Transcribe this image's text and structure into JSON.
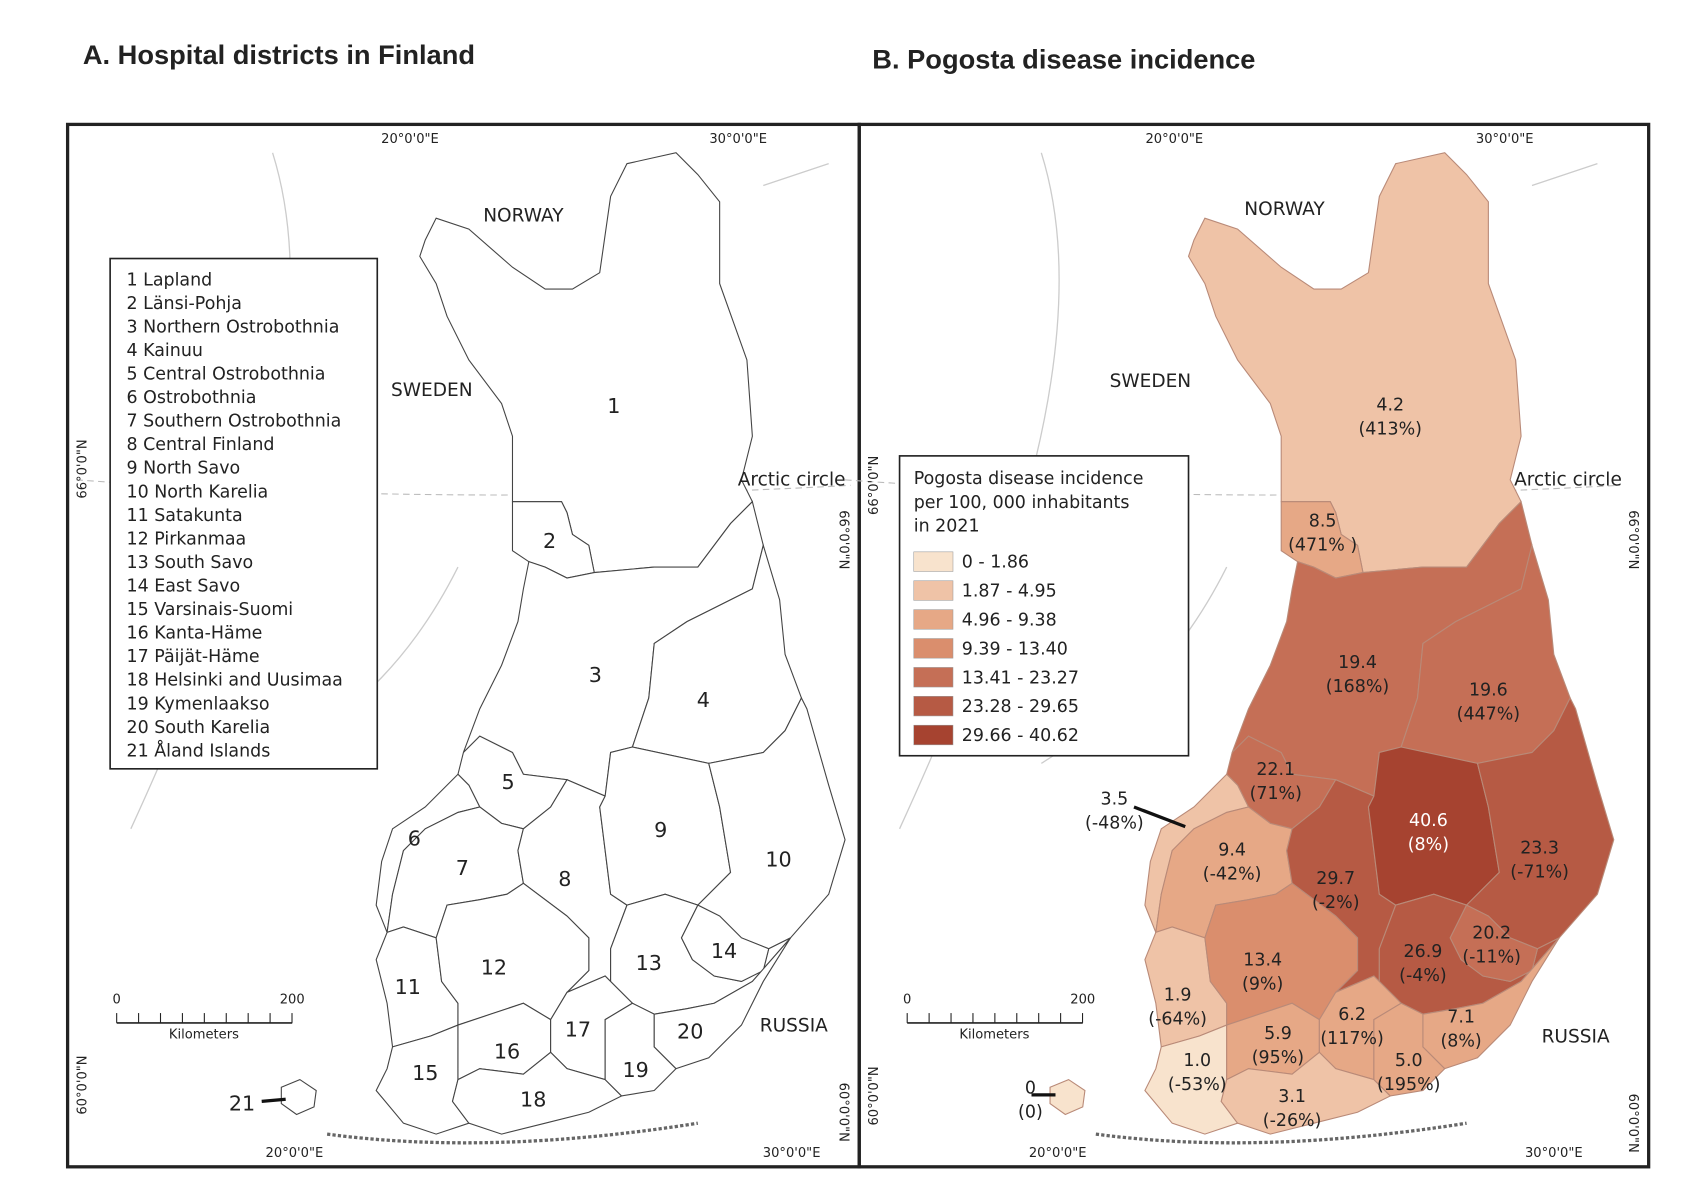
{
  "panel_a": {
    "title": "A. Hospital districts in Finland",
    "countries": {
      "norway": "NORWAY",
      "sweden": "SWEDEN",
      "russia": "RUSSIA"
    },
    "arctic_circle": "Arctic circle",
    "coords": {
      "lon_20": "20°0'0\"E",
      "lon_30": "30°0'0\"E",
      "lat_66": "66°0'0\"N",
      "lat_60": "60°0'0\"N"
    },
    "legend": [
      "1 Lapland",
      "2 Länsi-Pohja",
      "3 Northern Ostrobothnia",
      "4 Kainuu",
      "5 Central Ostrobothnia",
      "6 Ostrobothnia",
      "7 Southern Ostrobothnia",
      "8 Central Finland",
      "9 North Savo",
      "10 North Karelia",
      "11  Satakunta",
      "12 Pirkanmaa",
      "13 South Savo",
      "14 East Savo",
      "15 Varsinais-Suomi",
      "16 Kanta-Häme",
      "17 Päijät-Häme",
      "18 Helsinki and Uusimaa",
      "19 Kymenlaakso",
      "20 South Karelia",
      "21 Åland Islands"
    ],
    "district_numbers": [
      "1",
      "2",
      "3",
      "4",
      "5",
      "6",
      "7",
      "8",
      "9",
      "10",
      "11",
      "12",
      "13",
      "14",
      "15",
      "16",
      "17",
      "18",
      "19",
      "20",
      "21"
    ],
    "scale": {
      "min": "0",
      "max": "200",
      "unit": "Kilometers"
    }
  },
  "panel_b": {
    "title": "B. Pogosta disease incidence",
    "countries": {
      "norway": "NORWAY",
      "sweden": "SWEDEN",
      "russia": "RUSSIA"
    },
    "arctic_circle": "Arctic circle",
    "coords": {
      "lon_20": "20°0'0\"E",
      "lon_30": "30°0'0\"E",
      "lat_66": "66°0'0\"N",
      "lat_60": "60°0'0\"N"
    },
    "legend": {
      "title": [
        "Pogosta disease incidence",
        "per 100, 000 inhabitants",
        "in 2021"
      ],
      "classes": [
        {
          "label": "0 - 1.86",
          "color": "#f8e3cd"
        },
        {
          "label": "1.87 - 4.95",
          "color": "#efc3a7"
        },
        {
          "label": "4.96 - 9.38",
          "color": "#e6a886"
        },
        {
          "label": "9.39 - 13.40",
          "color": "#da8e6d"
        },
        {
          "label": "13.41 - 23.27",
          "color": "#c56f56"
        },
        {
          "label": "23.28 - 29.65",
          "color": "#b65a44"
        },
        {
          "label": "29.66 - 40.62",
          "color": "#a64330"
        }
      ]
    },
    "regions": [
      {
        "value": "4.2",
        "change": "(413%)"
      },
      {
        "value": "8.5",
        "change": "(471% )"
      },
      {
        "value": "19.4",
        "change": "(168%)"
      },
      {
        "value": "19.6",
        "change": "(447%)"
      },
      {
        "value": "22.1",
        "change": "(71%)"
      },
      {
        "value": "3.5",
        "change": "(-48%)"
      },
      {
        "value": "9.4",
        "change": "(-42%)"
      },
      {
        "value": "29.7",
        "change": "(-2%)"
      },
      {
        "value": "40.6",
        "change": "(8%)"
      },
      {
        "value": "23.3",
        "change": "(-71%)"
      },
      {
        "value": "1.9",
        "change": "(-64%)"
      },
      {
        "value": "13.4",
        "change": "(9%)"
      },
      {
        "value": "26.9",
        "change": "(-4%)"
      },
      {
        "value": "20.2",
        "change": "(-11%)"
      },
      {
        "value": "1.0",
        "change": "(-53%)"
      },
      {
        "value": "5.9",
        "change": "(95%)"
      },
      {
        "value": "6.2",
        "change": "(117%)"
      },
      {
        "value": "3.1",
        "change": "(-26%)"
      },
      {
        "value": "5.0",
        "change": "(195%)"
      },
      {
        "value": "7.1",
        "change": "(8%)"
      },
      {
        "value": "0",
        "change": "(0)"
      }
    ],
    "scale": {
      "min": "0",
      "max": "200",
      "unit": "Kilometers"
    }
  }
}
